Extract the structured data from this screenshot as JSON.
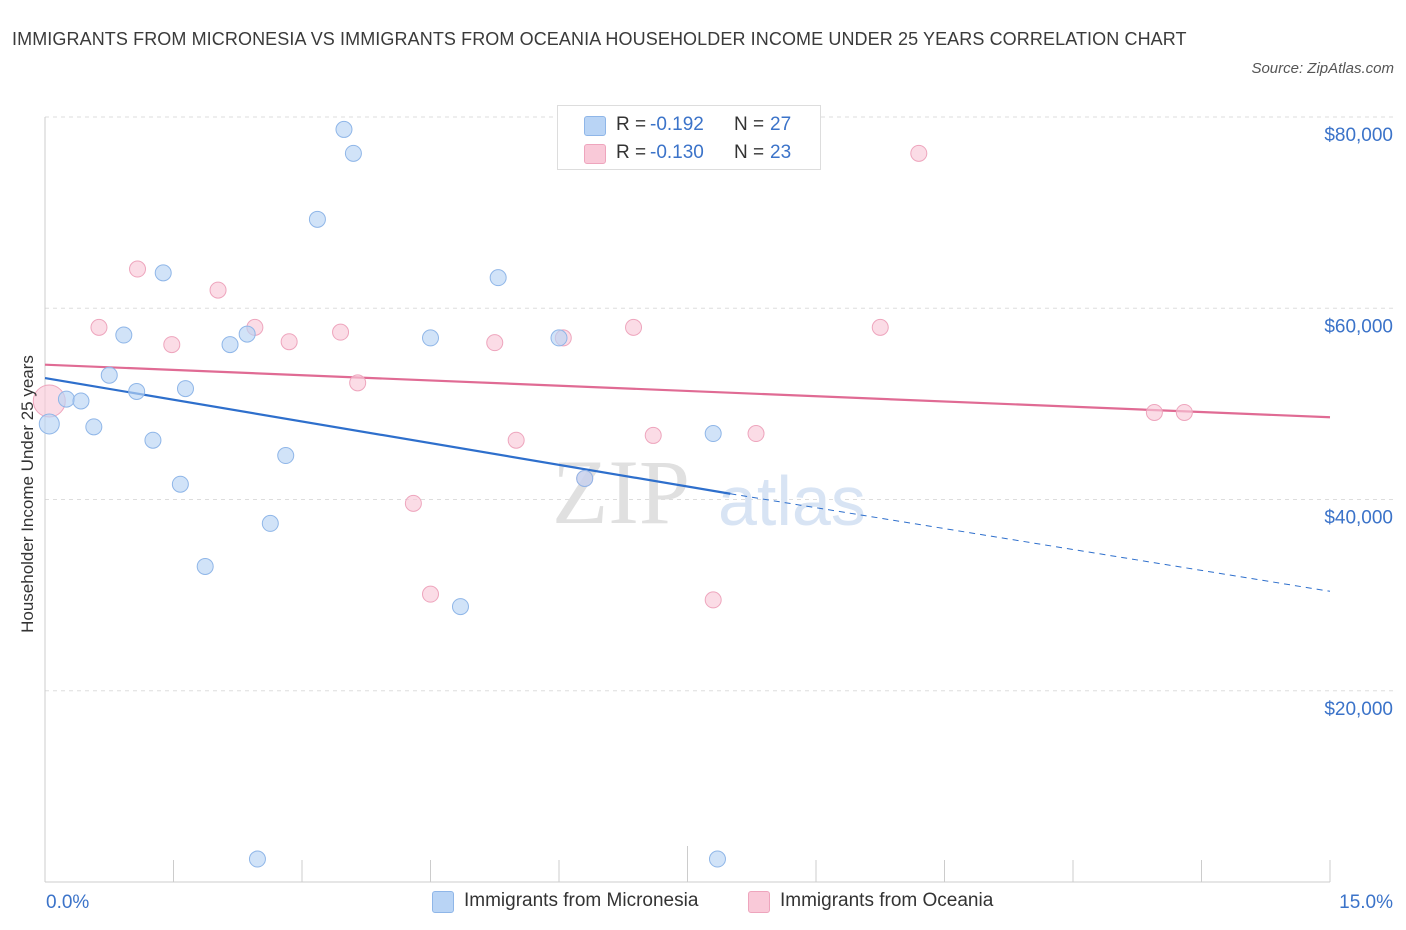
{
  "title": "IMMIGRANTS FROM MICRONESIA VS IMMIGRANTS FROM OCEANIA HOUSEHOLDER INCOME UNDER 25 YEARS CORRELATION CHART",
  "source": "Source: ZipAtlas.com",
  "watermark": {
    "zip": "ZIP",
    "atlas": "atlas"
  },
  "legend": {
    "r_label": "R =",
    "n_label": "N =",
    "series": [
      {
        "name": "Immigrants from Micronesia",
        "r": "-0.192",
        "n": "27"
      },
      {
        "name": "Immigrants from Oceania",
        "r": "-0.130",
        "n": "23"
      }
    ]
  },
  "colors": {
    "micronesia_fill": "#b9d4f5",
    "micronesia_stroke": "#8fb6e8",
    "micronesia_line": "#2e6fcc",
    "oceania_fill": "#f9c9d8",
    "oceania_stroke": "#eea5bd",
    "oceania_line": "#e06b94",
    "tick_label": "#3b73c9",
    "grid": "#dddddd"
  },
  "chart_data": {
    "type": "scatter",
    "title": "IMMIGRANTS FROM MICRONESIA VS IMMIGRANTS FROM OCEANIA HOUSEHOLDER INCOME UNDER 25 YEARS CORRELATION CHART",
    "xlabel": "",
    "ylabel": "Householder Income Under 25 years",
    "xlim": [
      0,
      15
    ],
    "ylim": [
      0,
      80000
    ],
    "x_tick_labels": [
      "0.0%",
      "15.0%"
    ],
    "y_ticks": [
      20000,
      40000,
      60000,
      80000
    ],
    "y_tick_labels": [
      "$20,000",
      "$40,000",
      "$60,000",
      "$80,000"
    ],
    "grid": true,
    "legend_position": "top-center",
    "series": [
      {
        "name": "Immigrants from Micronesia",
        "points": [
          {
            "x": 0.05,
            "y": 47900,
            "size": "large"
          },
          {
            "x": 0.25,
            "y": 50500
          },
          {
            "x": 0.42,
            "y": 50300
          },
          {
            "x": 0.57,
            "y": 47600
          },
          {
            "x": 0.75,
            "y": 53000
          },
          {
            "x": 0.92,
            "y": 57200
          },
          {
            "x": 1.07,
            "y": 51300
          },
          {
            "x": 1.26,
            "y": 46200
          },
          {
            "x": 1.38,
            "y": 63700
          },
          {
            "x": 1.58,
            "y": 41600
          },
          {
            "x": 1.64,
            "y": 51600
          },
          {
            "x": 1.87,
            "y": 33000
          },
          {
            "x": 2.16,
            "y": 56200
          },
          {
            "x": 2.36,
            "y": 57300
          },
          {
            "x": 2.48,
            "y": 2400
          },
          {
            "x": 2.63,
            "y": 37500
          },
          {
            "x": 2.81,
            "y": 44600
          },
          {
            "x": 3.18,
            "y": 69300
          },
          {
            "x": 3.49,
            "y": 78700
          },
          {
            "x": 3.6,
            "y": 76200
          },
          {
            "x": 4.5,
            "y": 56900
          },
          {
            "x": 4.85,
            "y": 28800
          },
          {
            "x": 5.29,
            "y": 63200
          },
          {
            "x": 6.0,
            "y": 56900
          },
          {
            "x": 6.3,
            "y": 42200
          },
          {
            "x": 7.8,
            "y": 46900
          },
          {
            "x": 7.85,
            "y": 2400
          }
        ],
        "trend": {
          "x": [
            0,
            8.0
          ],
          "y": [
            52700,
            40600
          ],
          "dashed_extension_to": {
            "x": 15,
            "y": 30400
          }
        }
      },
      {
        "name": "Immigrants from Oceania",
        "points": [
          {
            "x": 0.05,
            "y": 50300,
            "size": "xlarge"
          },
          {
            "x": 0.63,
            "y": 58000
          },
          {
            "x": 1.08,
            "y": 64100
          },
          {
            "x": 1.48,
            "y": 56200
          },
          {
            "x": 2.02,
            "y": 61900
          },
          {
            "x": 2.45,
            "y": 58000
          },
          {
            "x": 2.85,
            "y": 56500
          },
          {
            "x": 3.45,
            "y": 57500
          },
          {
            "x": 3.65,
            "y": 52200
          },
          {
            "x": 4.3,
            "y": 39600
          },
          {
            "x": 4.5,
            "y": 30100
          },
          {
            "x": 5.25,
            "y": 56400
          },
          {
            "x": 5.5,
            "y": 46200
          },
          {
            "x": 6.05,
            "y": 56900
          },
          {
            "x": 6.3,
            "y": 42200
          },
          {
            "x": 6.87,
            "y": 58000
          },
          {
            "x": 7.1,
            "y": 46700
          },
          {
            "x": 7.8,
            "y": 29500
          },
          {
            "x": 8.3,
            "y": 46900
          },
          {
            "x": 9.75,
            "y": 58000
          },
          {
            "x": 10.2,
            "y": 76200
          },
          {
            "x": 12.95,
            "y": 49100
          },
          {
            "x": 13.3,
            "y": 49100
          }
        ],
        "trend": {
          "x": [
            0,
            15
          ],
          "y": [
            54100,
            48600
          ]
        }
      }
    ]
  }
}
